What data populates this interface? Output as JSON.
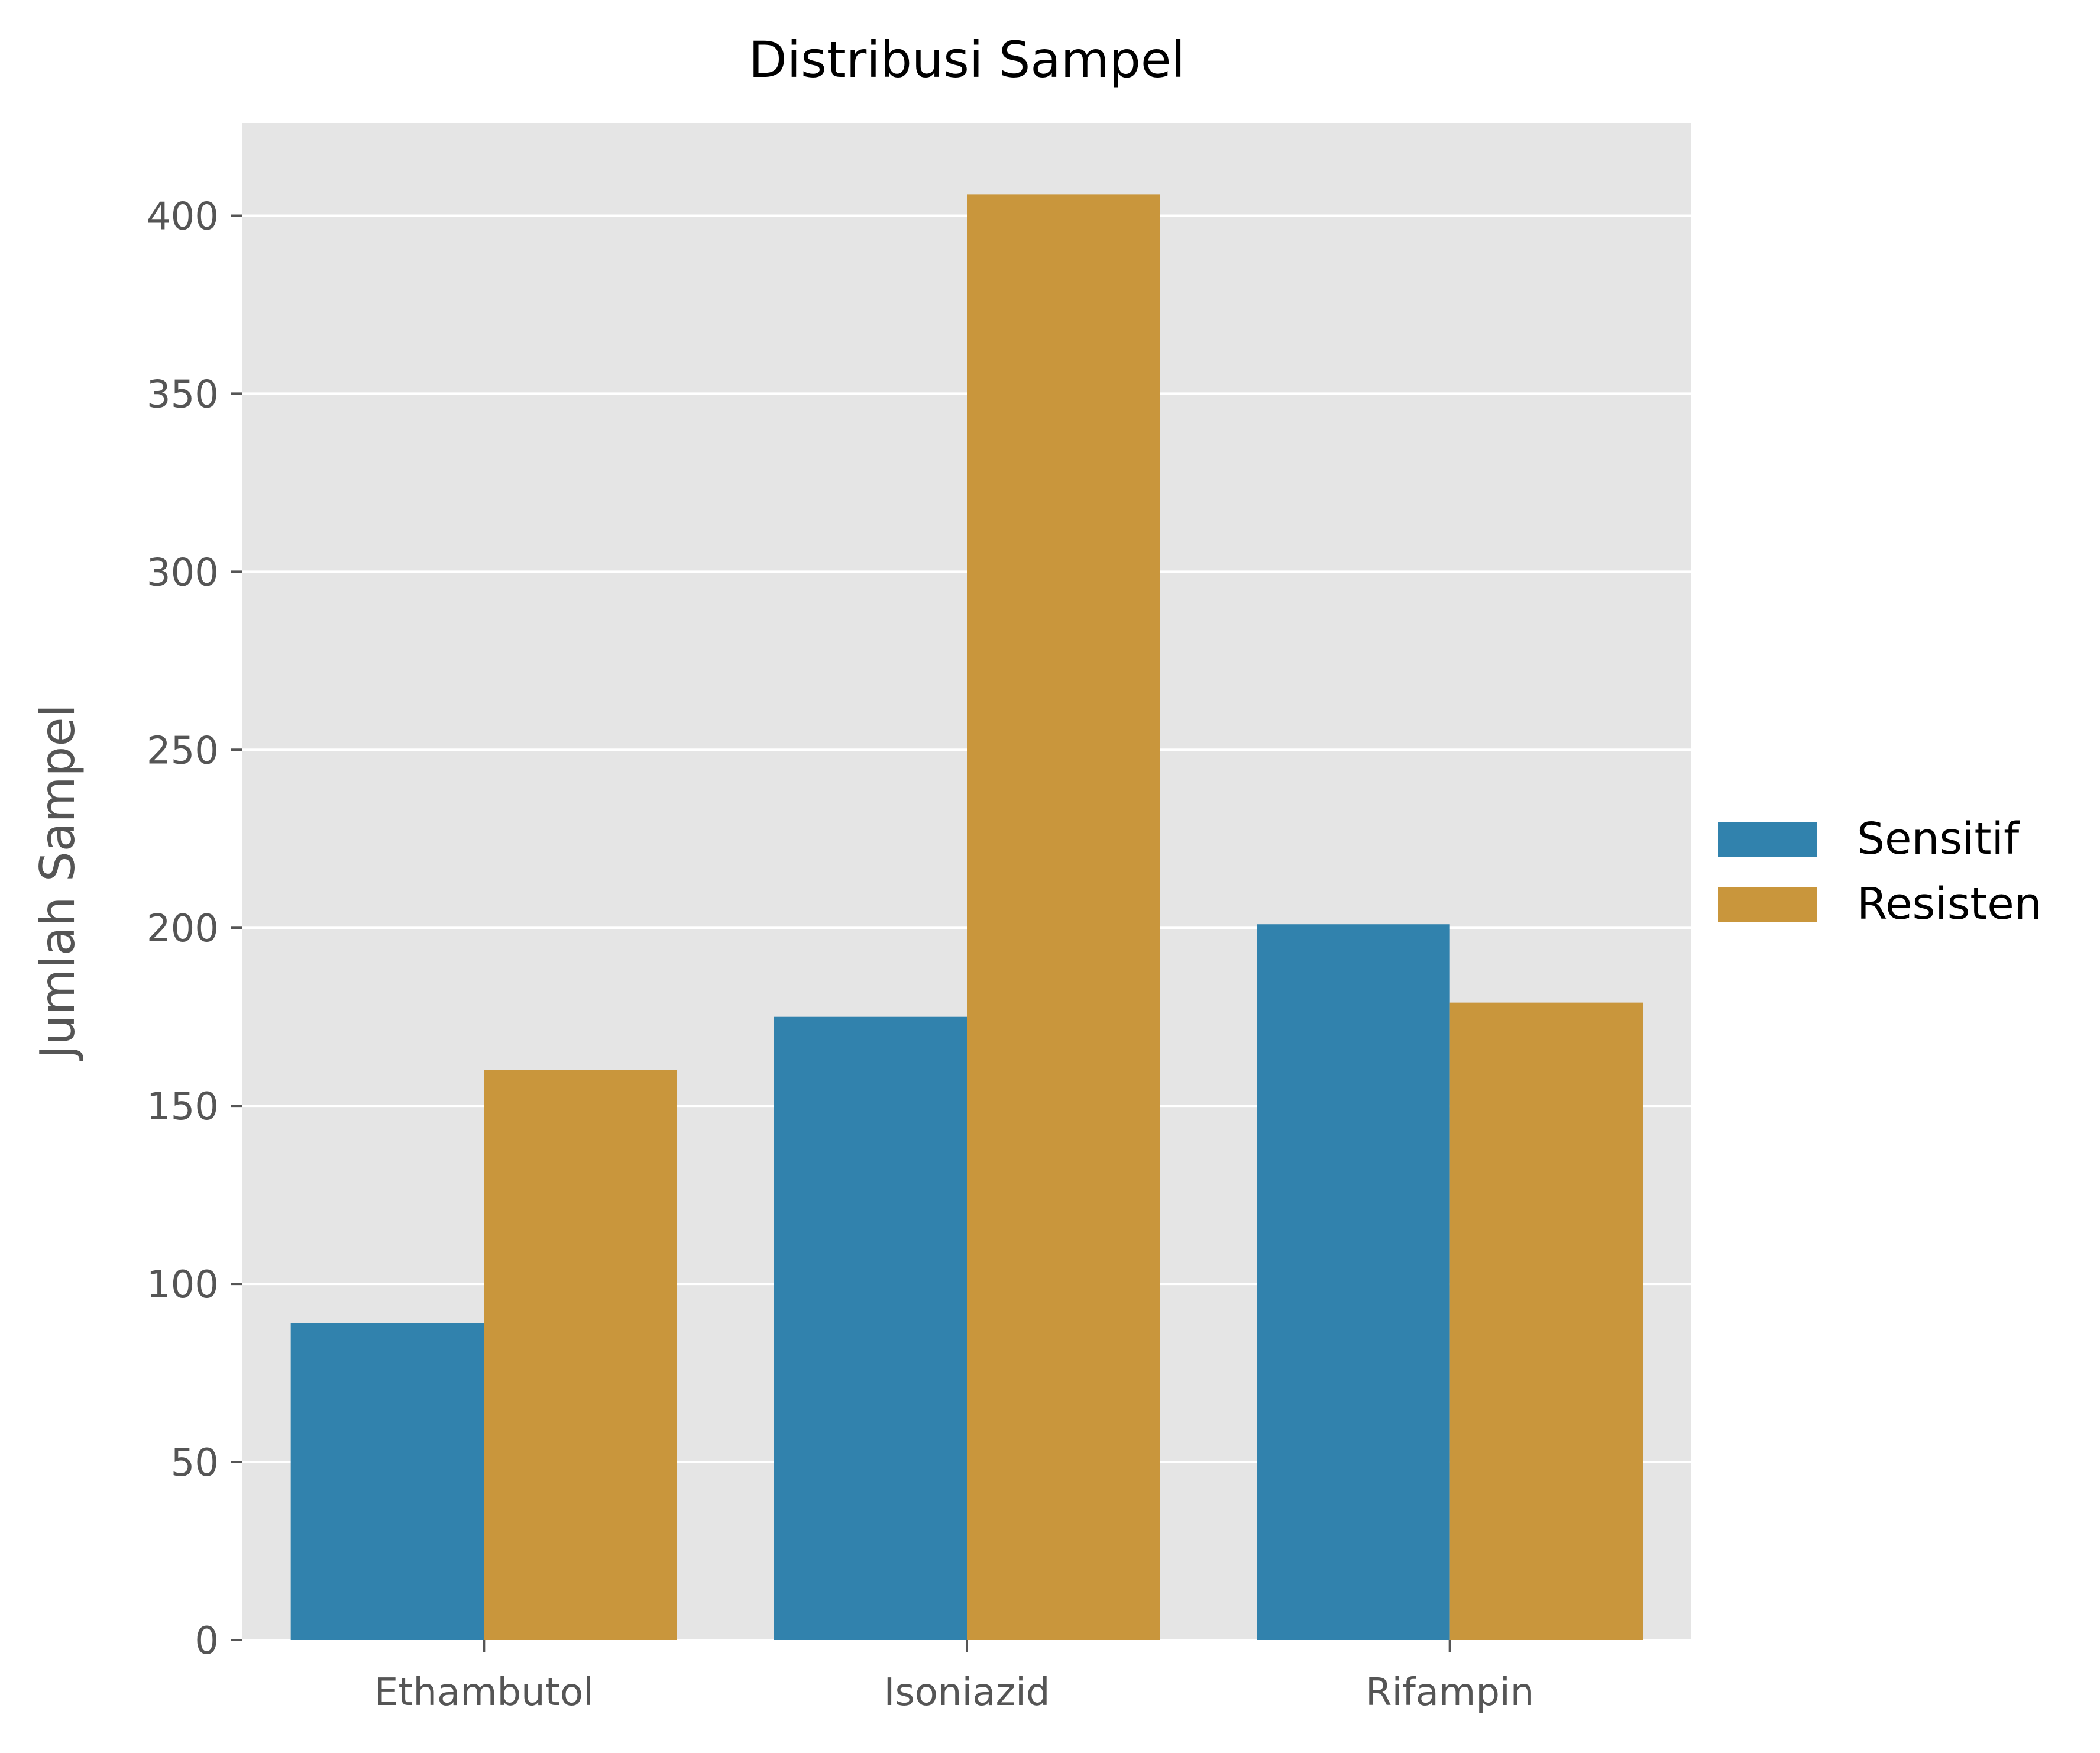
{
  "chart_data": {
    "type": "bar",
    "title": "Distribusi Sampel",
    "xlabel": "",
    "ylabel": "Jumlah Sampel",
    "categories": [
      "Ethambutol",
      "Isoniazid",
      "Rifampin"
    ],
    "series": [
      {
        "name": "Sensitif",
        "values": [
          89,
          175,
          201
        ],
        "color": "#3182ad"
      },
      {
        "name": "Resisten",
        "values": [
          160,
          406,
          179
        ],
        "color": "#c9963c"
      }
    ],
    "ylim": [
      0,
      426
    ],
    "yticks": [
      0,
      50,
      100,
      150,
      200,
      250,
      300,
      350,
      400
    ],
    "grid": true,
    "legend_position": "right",
    "plot_background": "#e5e5e5",
    "grid_color": "#ffffff"
  }
}
